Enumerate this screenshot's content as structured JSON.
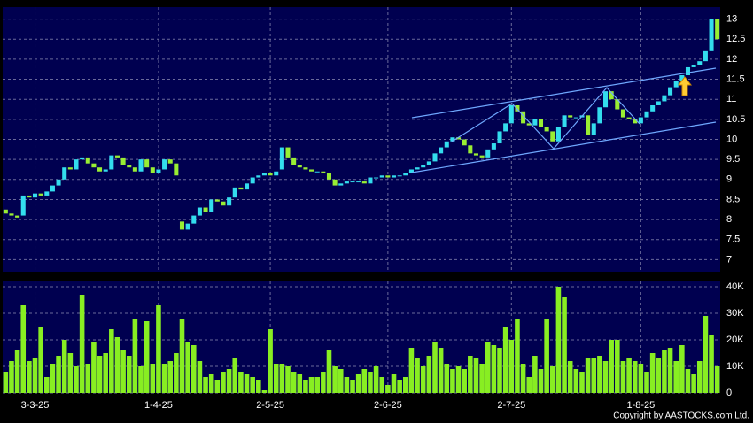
{
  "chart_data": [
    {
      "type": "candlestick",
      "categories": [
        null,
        null,
        null,
        null,
        null,
        "3-3-25",
        null,
        null,
        null,
        null,
        null,
        null,
        null,
        null,
        null,
        null,
        null,
        null,
        null,
        null,
        null,
        null,
        null,
        null,
        null,
        null,
        "1-4-25",
        null,
        null,
        null,
        null,
        null,
        null,
        null,
        null,
        null,
        null,
        null,
        null,
        null,
        null,
        null,
        null,
        null,
        null,
        "2-5-25",
        null,
        null,
        null,
        null,
        null,
        null,
        null,
        null,
        null,
        null,
        null,
        null,
        null,
        null,
        null,
        null,
        null,
        null,
        null,
        "2-6-25",
        null,
        null,
        null,
        null,
        null,
        null,
        null,
        null,
        null,
        null,
        null,
        null,
        null,
        null,
        null,
        null,
        null,
        null,
        null,
        null,
        "2-7-25",
        null,
        null,
        null,
        null,
        null,
        null,
        null,
        null,
        null,
        null,
        null,
        null,
        null,
        null,
        null,
        null,
        null,
        null,
        null,
        null,
        null,
        "1-8-25",
        null,
        null,
        null,
        null,
        null,
        null,
        null,
        null,
        null,
        null,
        null,
        null,
        null
      ],
      "open": [
        8.25,
        8.15,
        8.1,
        8.1,
        8.6,
        8.55,
        8.65,
        8.6,
        8.7,
        8.85,
        9.0,
        9.3,
        9.25,
        9.5,
        9.55,
        9.4,
        9.3,
        9.2,
        9.25,
        9.6,
        9.55,
        9.35,
        9.3,
        9.2,
        9.5,
        9.3,
        9.15,
        9.25,
        9.5,
        9.4,
        7.95,
        7.75,
        7.9,
        8.1,
        8.3,
        8.2,
        8.5,
        8.45,
        8.35,
        8.55,
        8.8,
        8.75,
        8.9,
        9.05,
        9.1,
        9.15,
        9.1,
        9.25,
        9.8,
        9.55,
        9.35,
        9.3,
        9.25,
        9.2,
        9.2,
        9.15,
        9.0,
        8.85,
        8.9,
        8.95,
        8.95,
        8.95,
        8.9,
        9.05,
        9.05,
        9.1,
        9.05,
        9.1,
        9.1,
        9.15,
        9.25,
        9.3,
        9.35,
        9.45,
        9.65,
        9.8,
        9.95,
        10.05,
        10.0,
        9.85,
        9.65,
        9.6,
        9.55,
        9.75,
        9.9,
        10.2,
        10.4,
        10.85,
        10.7,
        10.4,
        10.35,
        10.5,
        10.3,
        10.2,
        9.95,
        10.3,
        10.6,
        10.55,
        10.55,
        10.6,
        10.1,
        10.4,
        10.8,
        11.2,
        11.0,
        10.75,
        10.55,
        10.5,
        10.4,
        10.55,
        10.7,
        10.85,
        10.95,
        11.1,
        11.3,
        11.45,
        11.6,
        11.8,
        11.85,
        11.95,
        12.2,
        13.0
      ],
      "close": [
        8.15,
        8.1,
        8.05,
        8.6,
        8.55,
        8.65,
        8.6,
        8.7,
        8.85,
        9.0,
        9.3,
        9.25,
        9.5,
        9.55,
        9.4,
        9.3,
        9.2,
        9.25,
        9.6,
        9.55,
        9.35,
        9.3,
        9.2,
        9.5,
        9.3,
        9.15,
        9.25,
        9.5,
        9.4,
        9.1,
        7.75,
        7.9,
        8.1,
        8.3,
        8.2,
        8.5,
        8.45,
        8.35,
        8.55,
        8.8,
        8.75,
        8.9,
        9.05,
        9.1,
        9.15,
        9.1,
        9.2,
        9.8,
        9.55,
        9.35,
        9.3,
        9.25,
        9.2,
        9.2,
        9.15,
        9.0,
        8.85,
        8.9,
        8.95,
        8.95,
        8.95,
        8.9,
        9.05,
        9.05,
        9.1,
        9.05,
        9.1,
        9.1,
        9.15,
        9.25,
        9.3,
        9.35,
        9.45,
        9.65,
        9.8,
        9.95,
        10.05,
        10.0,
        9.85,
        9.65,
        9.6,
        9.55,
        9.75,
        9.9,
        10.2,
        10.4,
        10.85,
        10.7,
        10.4,
        10.35,
        10.5,
        10.3,
        10.2,
        9.95,
        10.3,
        10.6,
        10.55,
        10.55,
        10.6,
        10.1,
        10.4,
        10.8,
        11.2,
        11.0,
        10.75,
        10.55,
        10.5,
        10.4,
        10.55,
        10.7,
        10.85,
        10.95,
        11.1,
        11.3,
        11.45,
        11.6,
        11.8,
        11.85,
        11.95,
        12.2,
        13.0,
        12.5
      ],
      "up_color": "#33ddee",
      "down_color": "#99ee33",
      "ylim": [
        6.7,
        13.3
      ],
      "yticks": [
        7,
        7.5,
        8,
        8.5,
        9,
        9.5,
        10,
        10.5,
        11,
        11.5,
        12,
        12.5,
        13
      ],
      "grid": true
    },
    {
      "type": "bar",
      "color": "#88ee22",
      "values": [
        8000,
        12000,
        16000,
        33000,
        12000,
        13000,
        25000,
        6000,
        11000,
        14000,
        20000,
        15000,
        10000,
        37000,
        11000,
        19000,
        14000,
        15000,
        24000,
        21000,
        16000,
        14000,
        28000,
        10000,
        27000,
        11000,
        33000,
        11000,
        12000,
        15000,
        28000,
        19000,
        18000,
        12000,
        6000,
        7000,
        5000,
        8000,
        9000,
        13000,
        8000,
        7000,
        6000,
        5000,
        1000,
        24000,
        11000,
        11000,
        10000,
        8000,
        7000,
        5000,
        6000,
        6000,
        8000,
        16000,
        10000,
        9000,
        6000,
        5000,
        7000,
        9000,
        8000,
        10000,
        6000,
        3000,
        7000,
        5000,
        6000,
        17000,
        13000,
        10000,
        14000,
        19000,
        17000,
        11000,
        9000,
        10000,
        9000,
        14000,
        13000,
        11000,
        19000,
        18000,
        17000,
        25000,
        20000,
        28000,
        11000,
        6000,
        14000,
        9000,
        28000,
        10000,
        40000,
        36000,
        12000,
        9000,
        8000,
        13000,
        13000,
        14000,
        12000,
        20000,
        20000,
        12000,
        13000,
        12000,
        11000,
        8000,
        15000,
        13000,
        16000,
        17000,
        12000,
        18000,
        9000,
        7000,
        12000,
        29000,
        22000,
        10000
      ],
      "ylim": [
        0,
        42000
      ],
      "yticks": [
        {
          "value": 0,
          "label": "0"
        },
        {
          "value": 10000,
          "label": "10K"
        },
        {
          "value": 20000,
          "label": "20K"
        },
        {
          "value": 30000,
          "label": "30K"
        },
        {
          "value": 40000,
          "label": "40K"
        }
      ],
      "grid": true
    }
  ],
  "copyright": "Copyright by AASTOCKS.com Ltd."
}
